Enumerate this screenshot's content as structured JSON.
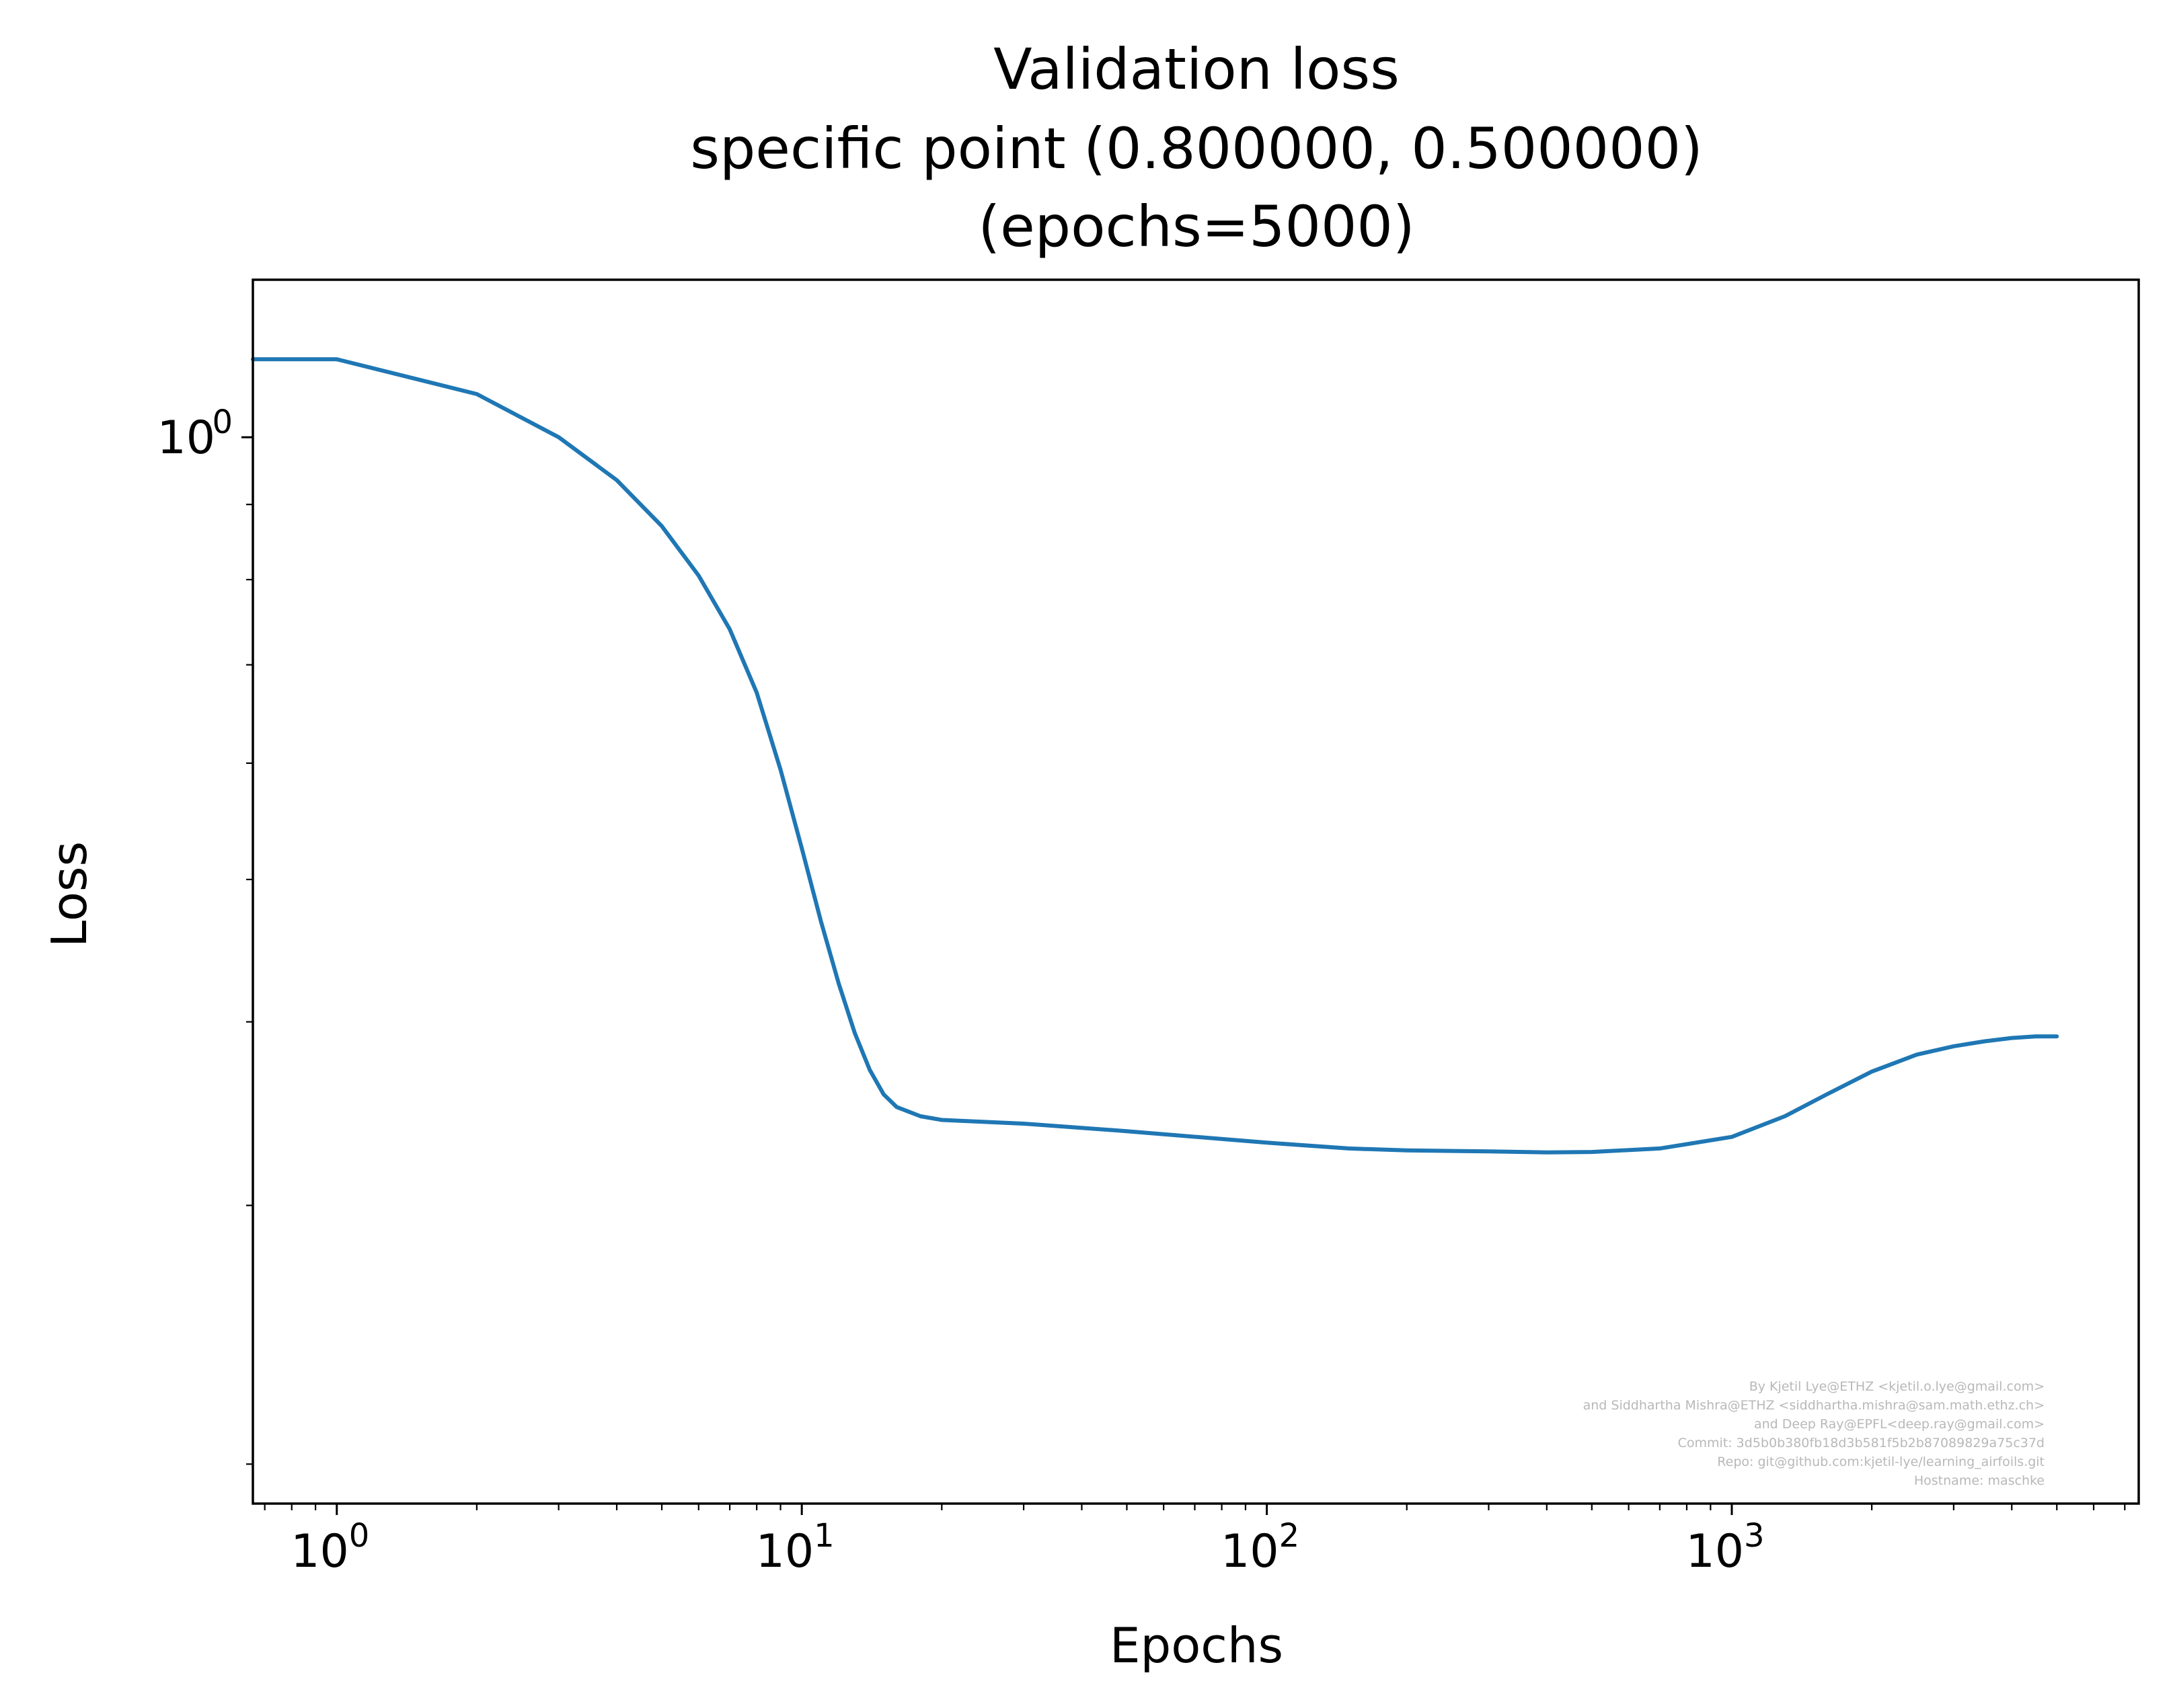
{
  "chart_data": {
    "type": "line",
    "title": [
      "Validation loss",
      "specific point  (0.800000, 0.500000)",
      "(epochs=5000)"
    ],
    "xlabel": "Epochs",
    "ylabel": "Loss",
    "xscale": "log",
    "yscale": "log",
    "xlim": [
      0.66,
      7500
    ],
    "ylim": [
      0.188,
      1.28
    ],
    "x_ticks": [
      {
        "base": "10",
        "exp": "0",
        "value": 1
      },
      {
        "base": "10",
        "exp": "1",
        "value": 10
      },
      {
        "base": "10",
        "exp": "2",
        "value": 100
      },
      {
        "base": "10",
        "exp": "3",
        "value": 1000
      }
    ],
    "y_ticks": [
      {
        "base": "10",
        "exp": "0",
        "value": 1
      }
    ],
    "grid": false,
    "series_color": "#1f77b4",
    "series": [
      {
        "x": [
          0.66,
          1,
          2,
          3,
          4,
          5,
          6,
          7,
          8,
          9,
          10,
          11,
          12,
          13,
          14,
          15,
          16,
          18,
          20,
          30,
          50,
          100,
          150,
          200,
          300,
          400,
          500,
          700,
          1000,
          1300,
          1600,
          2000,
          2500,
          3000,
          3500,
          4000,
          4500,
          5000
        ],
        "y": [
          1.13,
          1.13,
          1.07,
          1.0,
          0.935,
          0.87,
          0.805,
          0.74,
          0.67,
          0.594,
          0.525,
          0.468,
          0.425,
          0.393,
          0.371,
          0.357,
          0.35,
          0.345,
          0.343,
          0.341,
          0.337,
          0.331,
          0.328,
          0.327,
          0.3265,
          0.326,
          0.3262,
          0.328,
          0.334,
          0.345,
          0.357,
          0.37,
          0.38,
          0.385,
          0.388,
          0.39,
          0.391,
          0.391
        ]
      }
    ]
  },
  "watermark": [
    "By Kjetil Lye@ETHZ <kjetil.o.lye@gmail.com>",
    "and Siddhartha Mishra@ETHZ <siddhartha.mishra@sam.math.ethz.ch>",
    "and Deep Ray@EPFL<deep.ray@gmail.com>",
    "Commit: 3d5b0b380fb18d3b581f5b2b87089829a75c37d",
    "Repo: git@github.com:kjetil-lye/learning_airfoils.git",
    "Hostname: maschke"
  ]
}
